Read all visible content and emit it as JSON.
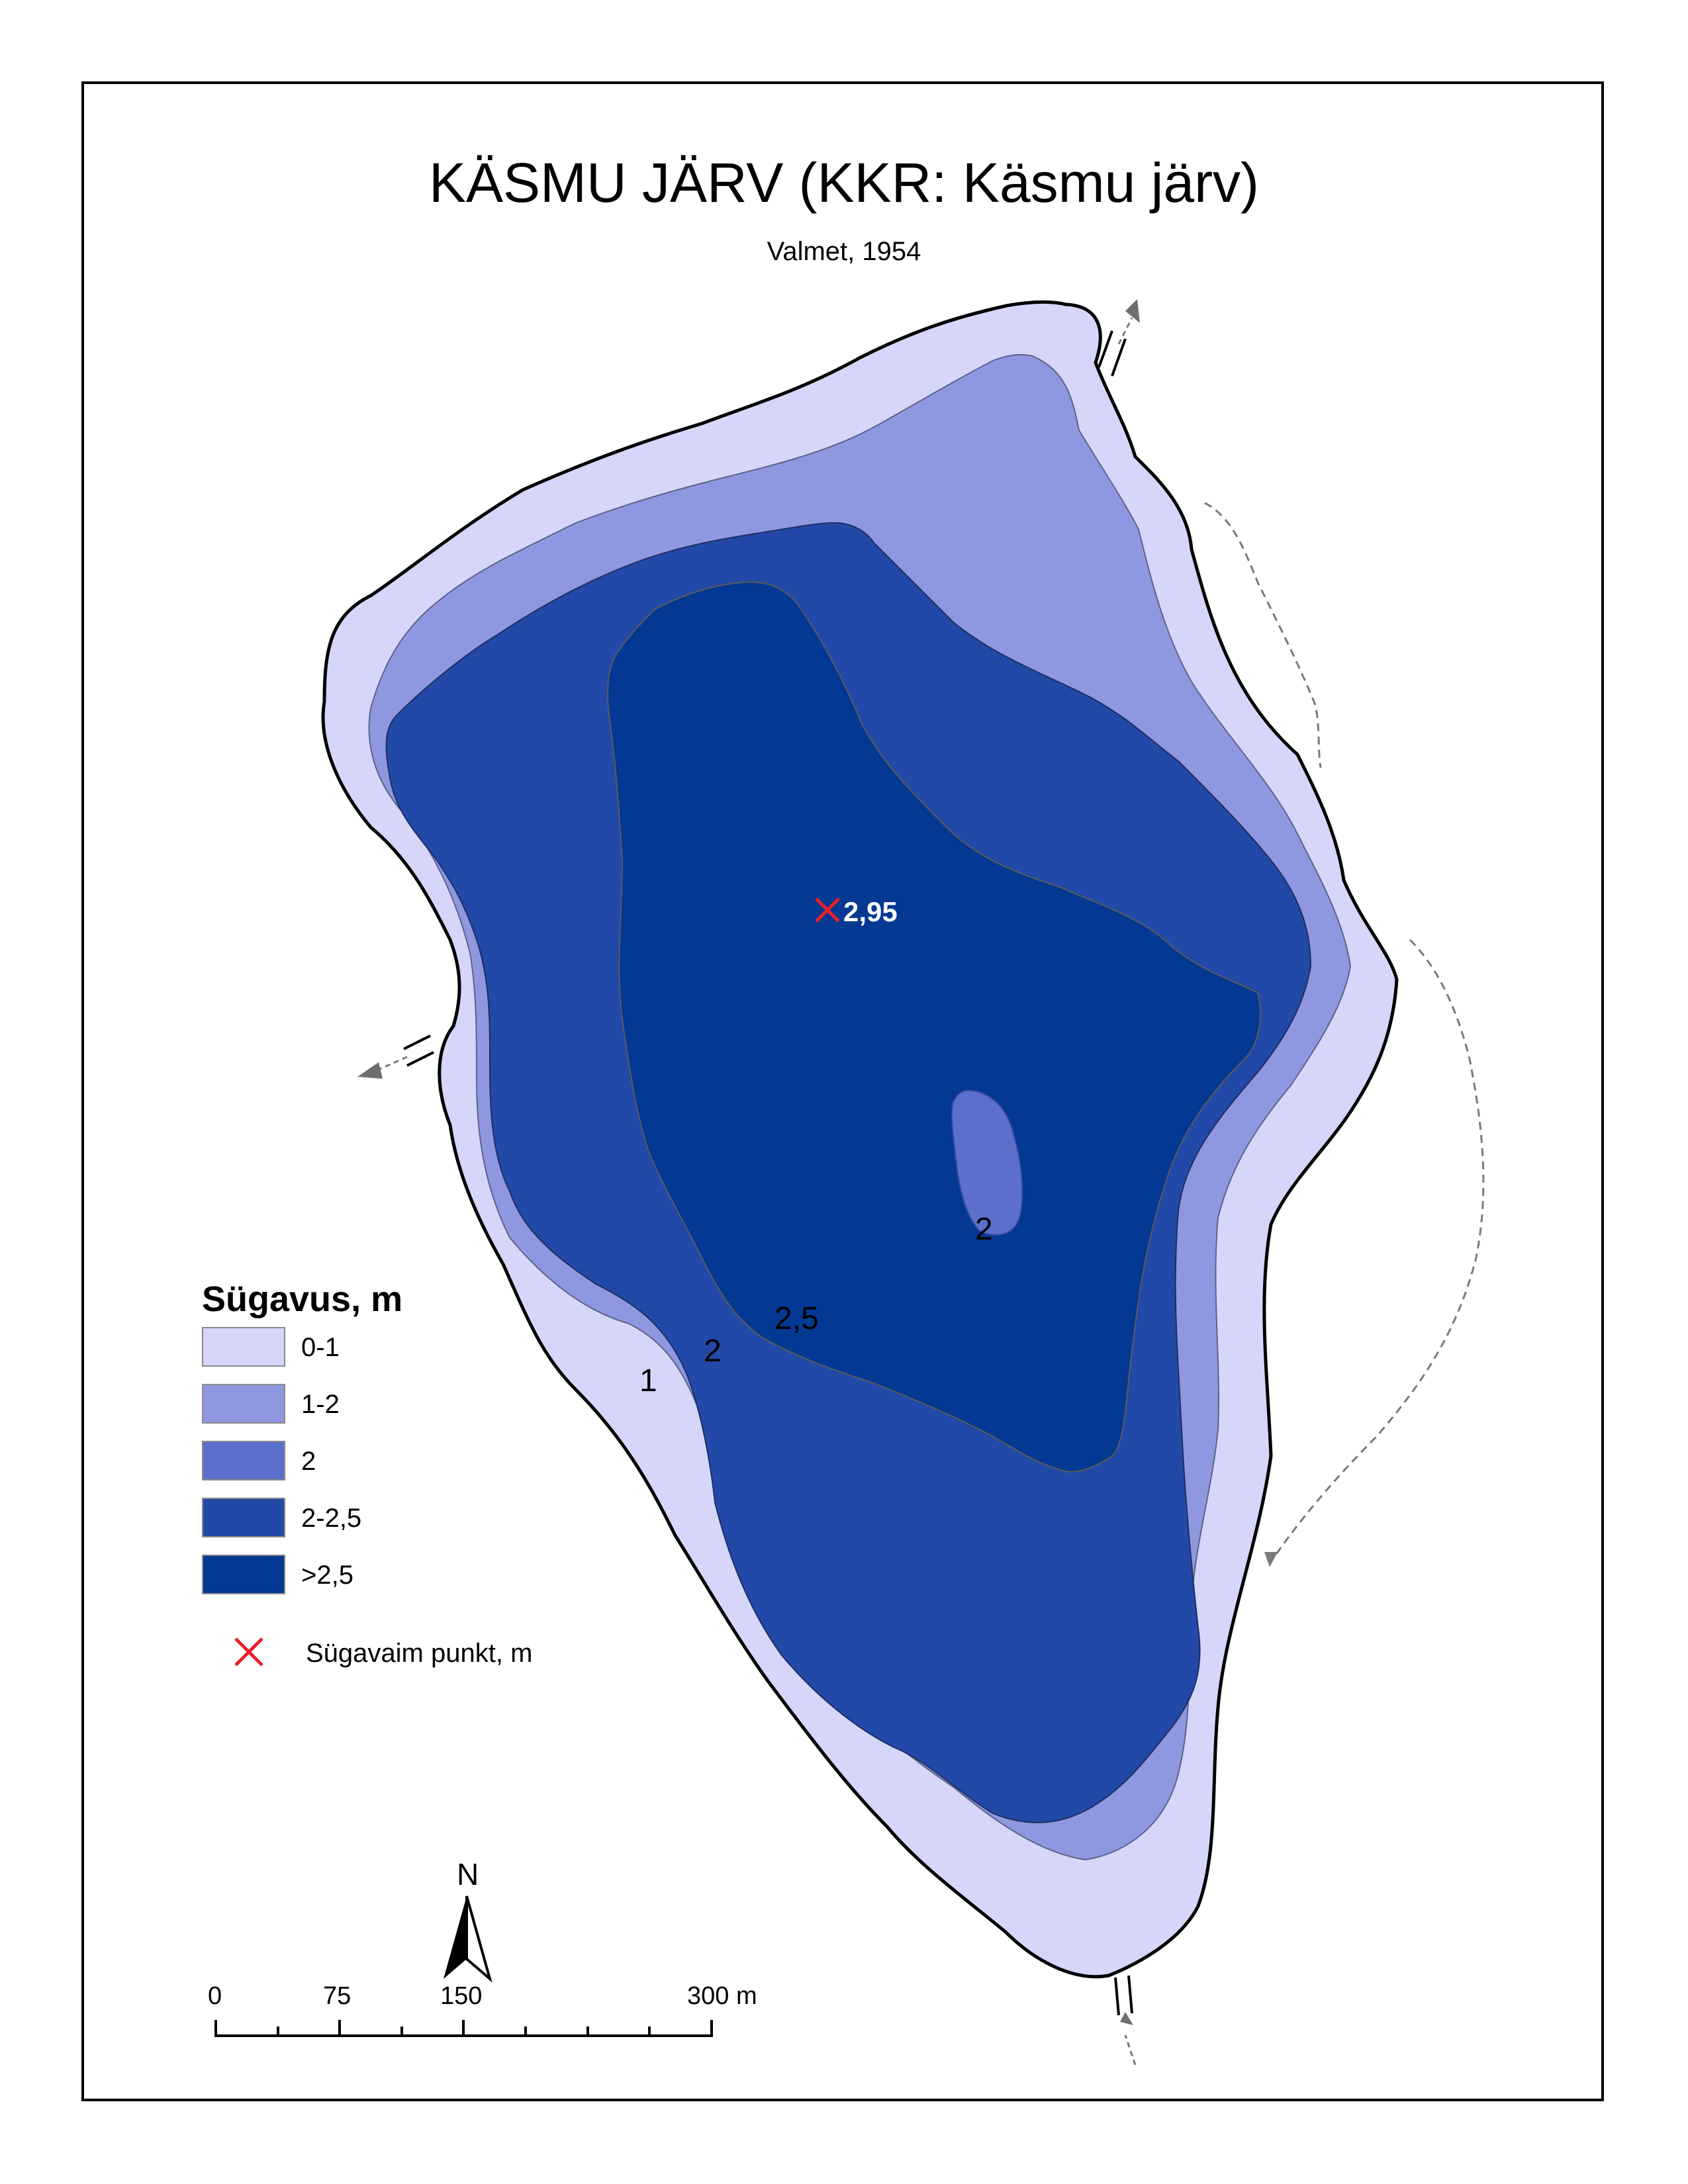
{
  "title": "KÄSMU JÄRV (KKR: Käsmu järv)",
  "subtitle": "Valmet, 1954",
  "legend": {
    "title": "Sügavus, m",
    "classes": [
      {
        "label": "0-1",
        "color": "#d6d6fb"
      },
      {
        "label": "1-2",
        "color": "#8f97e0"
      },
      {
        "label": "2",
        "color": "#5c6fcc"
      },
      {
        "label": "2-2,5",
        "color": "#2349a8"
      },
      {
        "label": ">2,5",
        "color": "#033893"
      }
    ],
    "deepest_point_label": "Sügavaim punkt, m"
  },
  "deepest_point": {
    "value": "2,95",
    "marker_color": "#e8202a"
  },
  "contour_labels": {
    "c1": "1",
    "c2_west": "2",
    "c25": "2,5",
    "c2_shoal": "2"
  },
  "north_arrow": {
    "label": "N"
  },
  "scale_bar": {
    "ticks": [
      "0",
      "75",
      "150",
      "300 m"
    ]
  },
  "colors": {
    "shore_line": "#000000",
    "stream": "#7a7a7a"
  }
}
